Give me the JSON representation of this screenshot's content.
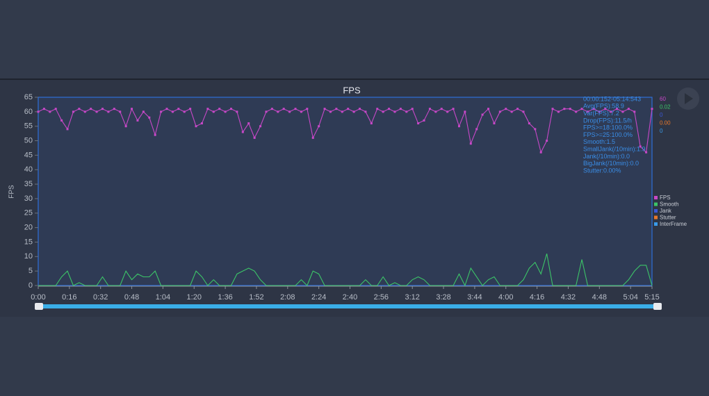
{
  "chart_data": {
    "type": "line",
    "title": "FPS",
    "ylabel": "FPS",
    "x": [
      0,
      3,
      6,
      9,
      12,
      15,
      18,
      21,
      24,
      27,
      30,
      33,
      36,
      39,
      42,
      45,
      48,
      51,
      54,
      57,
      60,
      63,
      66,
      69,
      72,
      75,
      78,
      81,
      84,
      87,
      90,
      93,
      96,
      99,
      102,
      105,
      108,
      111,
      114,
      117,
      120,
      123,
      126,
      129,
      132,
      135,
      138,
      141,
      144,
      147,
      150,
      153,
      156,
      159,
      162,
      165,
      168,
      171,
      174,
      177,
      180,
      183,
      186,
      189,
      192,
      195,
      198,
      201,
      204,
      207,
      210,
      213,
      216,
      219,
      222,
      225,
      228,
      231,
      234,
      237,
      240,
      243,
      246,
      249,
      252,
      255,
      258,
      261,
      264,
      267,
      270,
      273,
      276,
      279,
      282,
      285,
      288,
      291,
      294,
      297,
      300,
      303,
      306,
      309,
      312,
      315
    ],
    "series": [
      {
        "name": "FPS",
        "color": "#c848c8",
        "current": "60",
        "values": [
          60,
          61,
          60,
          61,
          57,
          54,
          60,
          61,
          60,
          61,
          60,
          61,
          60,
          61,
          60,
          55,
          61,
          57,
          60,
          58,
          52,
          60,
          61,
          60,
          61,
          60,
          61,
          55,
          56,
          61,
          60,
          61,
          60,
          61,
          60,
          53,
          56,
          51,
          55,
          60,
          61,
          60,
          61,
          60,
          61,
          60,
          61,
          51,
          55,
          61,
          60,
          61,
          60,
          61,
          60,
          61,
          60,
          56,
          61,
          60,
          61,
          60,
          61,
          60,
          61,
          56,
          57,
          61,
          60,
          61,
          60,
          61,
          55,
          60,
          49,
          54,
          59,
          61,
          56,
          60,
          61,
          60,
          61,
          60,
          56,
          54,
          46,
          50,
          61,
          60,
          61,
          61,
          60,
          61,
          60,
          61,
          60,
          61,
          60,
          61,
          60,
          61,
          60,
          48,
          46,
          61
        ]
      },
      {
        "name": "Smooth",
        "color": "#3cc468",
        "current": "0.02",
        "values": [
          0,
          0,
          0,
          0,
          3,
          5,
          0,
          1,
          0,
          0,
          0,
          3,
          0,
          0,
          0,
          5,
          2,
          4,
          3,
          3,
          5,
          0,
          0,
          0,
          0,
          0,
          0,
          5,
          3,
          0,
          2,
          0,
          0,
          0,
          4,
          5,
          6,
          5,
          2,
          0,
          0,
          0,
          0,
          0,
          0,
          2,
          0,
          5,
          4,
          0,
          0,
          0,
          0,
          0,
          0,
          0,
          2,
          0,
          0,
          3,
          0,
          1,
          0,
          0,
          2,
          3,
          2,
          0,
          0,
          0,
          0,
          0,
          4,
          0,
          6,
          3,
          0,
          2,
          3,
          0,
          0,
          0,
          0,
          2,
          6,
          8,
          4,
          11,
          0,
          0,
          0,
          0,
          0,
          9,
          0,
          0,
          0,
          0,
          0,
          0,
          0,
          2,
          5,
          7,
          7,
          0
        ]
      },
      {
        "name": "Jank",
        "color": "#3a58d8",
        "current": "0"
      },
      {
        "name": "Stutter",
        "color": "#e8782a",
        "current": "0.00"
      },
      {
        "name": "InterFrame",
        "color": "#3a9ae8",
        "current": "0"
      }
    ],
    "xlim": [
      0,
      315
    ],
    "xticks": [
      {
        "value": 0,
        "label": "0:00"
      },
      {
        "value": 16,
        "label": "0:16"
      },
      {
        "value": 32,
        "label": "0:32"
      },
      {
        "value": 48,
        "label": "0:48"
      },
      {
        "value": 64,
        "label": "1:04"
      },
      {
        "value": 80,
        "label": "1:20"
      },
      {
        "value": 96,
        "label": "1:36"
      },
      {
        "value": 112,
        "label": "1:52"
      },
      {
        "value": 128,
        "label": "2:08"
      },
      {
        "value": 144,
        "label": "2:24"
      },
      {
        "value": 160,
        "label": "2:40"
      },
      {
        "value": 176,
        "label": "2:56"
      },
      {
        "value": 192,
        "label": "3:12"
      },
      {
        "value": 208,
        "label": "3:28"
      },
      {
        "value": 224,
        "label": "3:44"
      },
      {
        "value": 240,
        "label": "4:00"
      },
      {
        "value": 256,
        "label": "4:16"
      },
      {
        "value": 272,
        "label": "4:32"
      },
      {
        "value": 288,
        "label": "4:48"
      },
      {
        "value": 304,
        "label": "5:04"
      },
      {
        "value": 315,
        "label": "5:15"
      }
    ],
    "ylim": [
      0,
      65
    ],
    "yticks": [
      0,
      5,
      10,
      15,
      20,
      25,
      30,
      35,
      40,
      45,
      50,
      55,
      60,
      65
    ],
    "stats": [
      "00:00:152-05:14:543",
      "Avg(FPS):58.9",
      "Var(FPS):7.2",
      "Drop(FPS):11.5/h",
      "FPS>=18:100.0%",
      "FPS>=25:100.0%",
      "Smooth:1.5",
      "SmallJank(/10min):1.9",
      "Jank(/10min):0.0",
      "BigJank(/10min):0.0",
      "Stutter:0.00%"
    ]
  }
}
